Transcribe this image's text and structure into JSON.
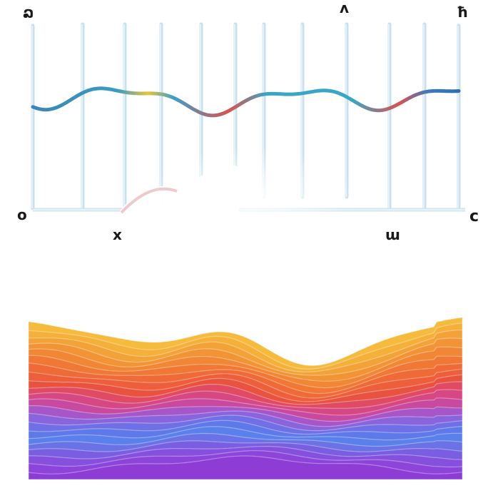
{
  "glyphs": {
    "top_left": "ລ",
    "top_mid": "ʌ",
    "top_right": "ħ",
    "axis_left": "o",
    "axis_right": "c",
    "below_left": "x",
    "below_right": "ɯ"
  },
  "colors": {
    "grid_line": "#c9e3ef",
    "axis_line": "#cfe4ee",
    "wave_blue": "#3a86b4",
    "wave_yellow": "#e8c43a",
    "wave_red": "#d9534f",
    "band_top": "#f2a43a",
    "band_mid": "#f06a3a",
    "band_pink": "#e0488c",
    "band_blue": "#5a7ae8",
    "band_violet": "#8a3fd6"
  }
}
